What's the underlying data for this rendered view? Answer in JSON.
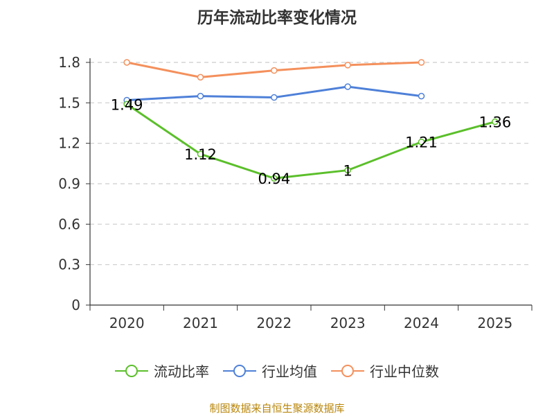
{
  "chart_data": {
    "type": "line",
    "title": "历年流动比率变化情况",
    "categories": [
      "2020",
      "2021",
      "2022",
      "2023",
      "2024",
      "2025"
    ],
    "ylim": [
      0,
      1.8
    ],
    "yticks": [
      "0",
      "0.3",
      "0.6",
      "0.9",
      "1.2",
      "1.5",
      "1.8"
    ],
    "grid": true,
    "legend_position": "bottom",
    "series": [
      {
        "name": "流动比率",
        "color": "#5bbf2a",
        "values": [
          1.49,
          1.12,
          0.94,
          1.0,
          1.21,
          1.36
        ],
        "labels": [
          "1.49",
          "1.12",
          "0.94",
          "1",
          "1.21",
          "1.36"
        ]
      },
      {
        "name": "行业均值",
        "color": "#4e80d8",
        "values": [
          1.52,
          1.55,
          1.54,
          1.62,
          1.55,
          null
        ]
      },
      {
        "name": "行业中位数",
        "color": "#f4905c",
        "values": [
          1.8,
          1.69,
          1.74,
          1.78,
          1.8,
          null
        ]
      }
    ]
  },
  "source": "制图数据来自恒生聚源数据库"
}
